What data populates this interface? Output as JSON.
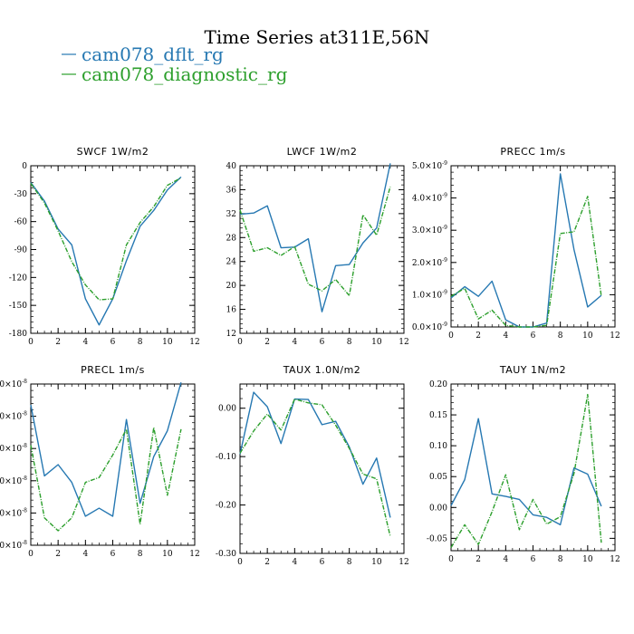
{
  "figure": {
    "title": "Time Series at311E,56N",
    "legend": [
      {
        "label": "cam078_dflt_rg",
        "color": "#2678b2"
      },
      {
        "label": "cam078_diagnostic_rg",
        "color": "#2c9f2c"
      }
    ]
  },
  "chart_data": [
    {
      "type": "line",
      "title": "SWCF   1W/m2",
      "x": [
        0,
        1,
        2,
        3,
        4,
        5,
        6,
        7,
        8,
        9,
        10,
        11
      ],
      "xlim": [
        0,
        12
      ],
      "xticks": [
        0,
        2,
        4,
        6,
        8,
        10,
        12
      ],
      "xtick_labels": [
        "0",
        "2",
        "4",
        "6",
        "8",
        "10",
        "12"
      ],
      "ylim": [
        -180,
        0
      ],
      "yticks": [
        -180,
        -150,
        -120,
        -90,
        -60,
        -30,
        0
      ],
      "ytick_labels": [
        "-180",
        "-150",
        "-120",
        "-90",
        "-60",
        "-30",
        "0"
      ],
      "series": [
        {
          "name": "cam078_dflt_rg",
          "color": "#2678b2",
          "dashed": false,
          "values": [
            -18,
            -38,
            -68,
            -85,
            -143,
            -171,
            -143,
            -102,
            -65,
            -48,
            -26,
            -12
          ]
        },
        {
          "name": "cam078_diagnostic_rg",
          "color": "#2c9f2c",
          "dashed": true,
          "values": [
            -19,
            -40,
            -70,
            -103,
            -128,
            -144,
            -143,
            -85,
            -61,
            -44,
            -21,
            -13
          ]
        }
      ]
    },
    {
      "type": "line",
      "title": "LWCF   1W/m2",
      "x": [
        0,
        1,
        2,
        3,
        4,
        5,
        6,
        7,
        8,
        9,
        10,
        11
      ],
      "xlim": [
        0,
        12
      ],
      "xticks": [
        0,
        2,
        4,
        6,
        8,
        10,
        12
      ],
      "xtick_labels": [
        "0",
        "2",
        "4",
        "6",
        "8",
        "10",
        "12"
      ],
      "ylim": [
        12,
        40
      ],
      "yticks": [
        12,
        16,
        20,
        24,
        28,
        32,
        36,
        40
      ],
      "ytick_labels": [
        "12",
        "16",
        "20",
        "24",
        "28",
        "32",
        "36",
        "40"
      ],
      "series": [
        {
          "name": "cam078_dflt_rg",
          "color": "#2678b2",
          "dashed": false,
          "values": [
            31.9,
            32.1,
            33.3,
            26.3,
            26.4,
            27.8,
            15.6,
            23.3,
            23.5,
            27.1,
            29.6,
            40.4
          ]
        },
        {
          "name": "cam078_diagnostic_rg",
          "color": "#2c9f2c",
          "dashed": true,
          "values": [
            32.6,
            25.7,
            26.3,
            25.0,
            26.5,
            20.2,
            19.1,
            21.0,
            18.3,
            31.8,
            28.4,
            36.5
          ]
        }
      ]
    },
    {
      "type": "line",
      "title": "PRECC   1m/s",
      "x": [
        0,
        1,
        2,
        3,
        4,
        5,
        6,
        7,
        8,
        9,
        10,
        11
      ],
      "xlim": [
        0,
        12
      ],
      "xticks": [
        0,
        2,
        4,
        6,
        8,
        10,
        12
      ],
      "xtick_labels": [
        "0",
        "2",
        "4",
        "6",
        "8",
        "10",
        "12"
      ],
      "ylim": [
        0,
        5e-09
      ],
      "yticks": [
        0,
        1e-09,
        2e-09,
        3e-09,
        4e-09,
        5e-09
      ],
      "ytick_labels": [
        {
          "mant": "0.0×10",
          "exp": "-9"
        },
        {
          "mant": "1.0×10",
          "exp": "-9"
        },
        {
          "mant": "2.0×10",
          "exp": "-9"
        },
        {
          "mant": "3.0×10",
          "exp": "-9"
        },
        {
          "mant": "4.0×10",
          "exp": "-9"
        },
        {
          "mant": "5.0×10",
          "exp": "-9"
        }
      ],
      "series": [
        {
          "name": "cam078_dflt_rg",
          "color": "#2678b2",
          "dashed": false,
          "values": [
            9e-10,
            1.25e-09,
            9.5e-10,
            1.42e-09,
            2.2e-10,
            0.0,
            0.0,
            1.2e-10,
            4.75e-09,
            2.4e-09,
            6.2e-10,
            9.8e-10
          ]
        },
        {
          "name": "cam078_diagnostic_rg",
          "color": "#2c9f2c",
          "dashed": true,
          "values": [
            9.5e-10,
            1.2e-09,
            2.5e-10,
            5.2e-10,
            5e-11,
            0.0,
            0.0,
            5e-11,
            2.9e-09,
            2.95e-09,
            4.05e-09,
            9.5e-10
          ]
        }
      ]
    },
    {
      "type": "line",
      "title": "PRECL   1m/s",
      "x": [
        0,
        1,
        2,
        3,
        4,
        5,
        6,
        7,
        8,
        9,
        10,
        11
      ],
      "xlim": [
        0,
        12
      ],
      "xticks": [
        0,
        2,
        4,
        6,
        8,
        10,
        12
      ],
      "xtick_labels": [
        "0",
        "2",
        "4",
        "6",
        "8",
        "10",
        "12"
      ],
      "ylim": [
        0,
        1.0
      ],
      "yticks": [
        0,
        0.2,
        0.4,
        0.6,
        0.8,
        1.0
      ],
      "ytick_labels": [
        {
          "mant": ".0×10",
          "exp": "-8"
        },
        {
          "mant": ".0×10",
          "exp": "-8"
        },
        {
          "mant": ".0×10",
          "exp": "-8"
        },
        {
          "mant": ".0×10",
          "exp": "-8"
        },
        {
          "mant": ".0×10",
          "exp": "-8"
        },
        {
          "mant": ".0×10",
          "exp": "-8"
        }
      ],
      "series": [
        {
          "name": "cam078_dflt_rg",
          "color": "#2678b2",
          "dashed": false,
          "values": [
            0.87,
            0.43,
            0.5,
            0.39,
            0.18,
            0.23,
            0.18,
            0.78,
            0.26,
            0.55,
            0.71,
            1.01
          ]
        },
        {
          "name": "cam078_diagnostic_rg",
          "color": "#2c9f2c",
          "dashed": true,
          "values": [
            0.62,
            0.17,
            0.09,
            0.17,
            0.39,
            0.42,
            0.56,
            0.72,
            0.13,
            0.73,
            0.31,
            0.72
          ]
        }
      ]
    },
    {
      "type": "line",
      "title": "TAUX   1.0N/m2",
      "x": [
        0,
        1,
        2,
        3,
        4,
        5,
        6,
        7,
        8,
        9,
        10,
        11
      ],
      "xlim": [
        0,
        12
      ],
      "xticks": [
        0,
        2,
        4,
        6,
        8,
        10,
        12
      ],
      "xtick_labels": [
        "0",
        "2",
        "4",
        "6",
        "8",
        "10",
        "12"
      ],
      "ylim": [
        -0.3,
        0.05
      ],
      "yticks": [
        -0.3,
        -0.2,
        -0.1,
        0.0
      ],
      "ytick_labels": [
        "-0.30",
        "-0.20",
        "-0.10",
        "0.00"
      ],
      "series": [
        {
          "name": "cam078_dflt_rg",
          "color": "#2678b2",
          "dashed": false,
          "values": [
            -0.095,
            0.033,
            0.003,
            -0.073,
            0.019,
            0.018,
            -0.034,
            -0.027,
            -0.08,
            -0.157,
            -0.103,
            -0.226
          ]
        },
        {
          "name": "cam078_diagnostic_rg",
          "color": "#2c9f2c",
          "dashed": true,
          "values": [
            -0.093,
            -0.047,
            -0.012,
            -0.045,
            0.019,
            0.011,
            0.007,
            -0.035,
            -0.083,
            -0.136,
            -0.146,
            -0.265
          ]
        }
      ]
    },
    {
      "type": "line",
      "title": "TAUY   1N/m2",
      "x": [
        0,
        1,
        2,
        3,
        4,
        5,
        6,
        7,
        8,
        9,
        10,
        11
      ],
      "xlim": [
        0,
        12
      ],
      "xticks": [
        0,
        2,
        4,
        6,
        8,
        10,
        12
      ],
      "xtick_labels": [
        "0",
        "2",
        "4",
        "6",
        "8",
        "10",
        "12"
      ],
      "ylim": [
        -0.07,
        0.2
      ],
      "yticks": [
        -0.05,
        0.0,
        0.05,
        0.1,
        0.15,
        0.2
      ],
      "ytick_labels": [
        "-0.05",
        "0.00",
        "0.05",
        "0.10",
        "0.15",
        "0.20"
      ],
      "series": [
        {
          "name": "cam078_dflt_rg",
          "color": "#2678b2",
          "dashed": false,
          "values": [
            0.003,
            0.045,
            0.144,
            0.022,
            0.018,
            0.013,
            -0.012,
            -0.016,
            -0.028,
            0.064,
            0.054,
            0.002
          ]
        },
        {
          "name": "cam078_diagnostic_rg",
          "color": "#2c9f2c",
          "dashed": true,
          "values": [
            -0.065,
            -0.028,
            -0.06,
            -0.007,
            0.053,
            -0.036,
            0.013,
            -0.027,
            -0.015,
            0.055,
            0.183,
            -0.057
          ]
        }
      ]
    }
  ]
}
